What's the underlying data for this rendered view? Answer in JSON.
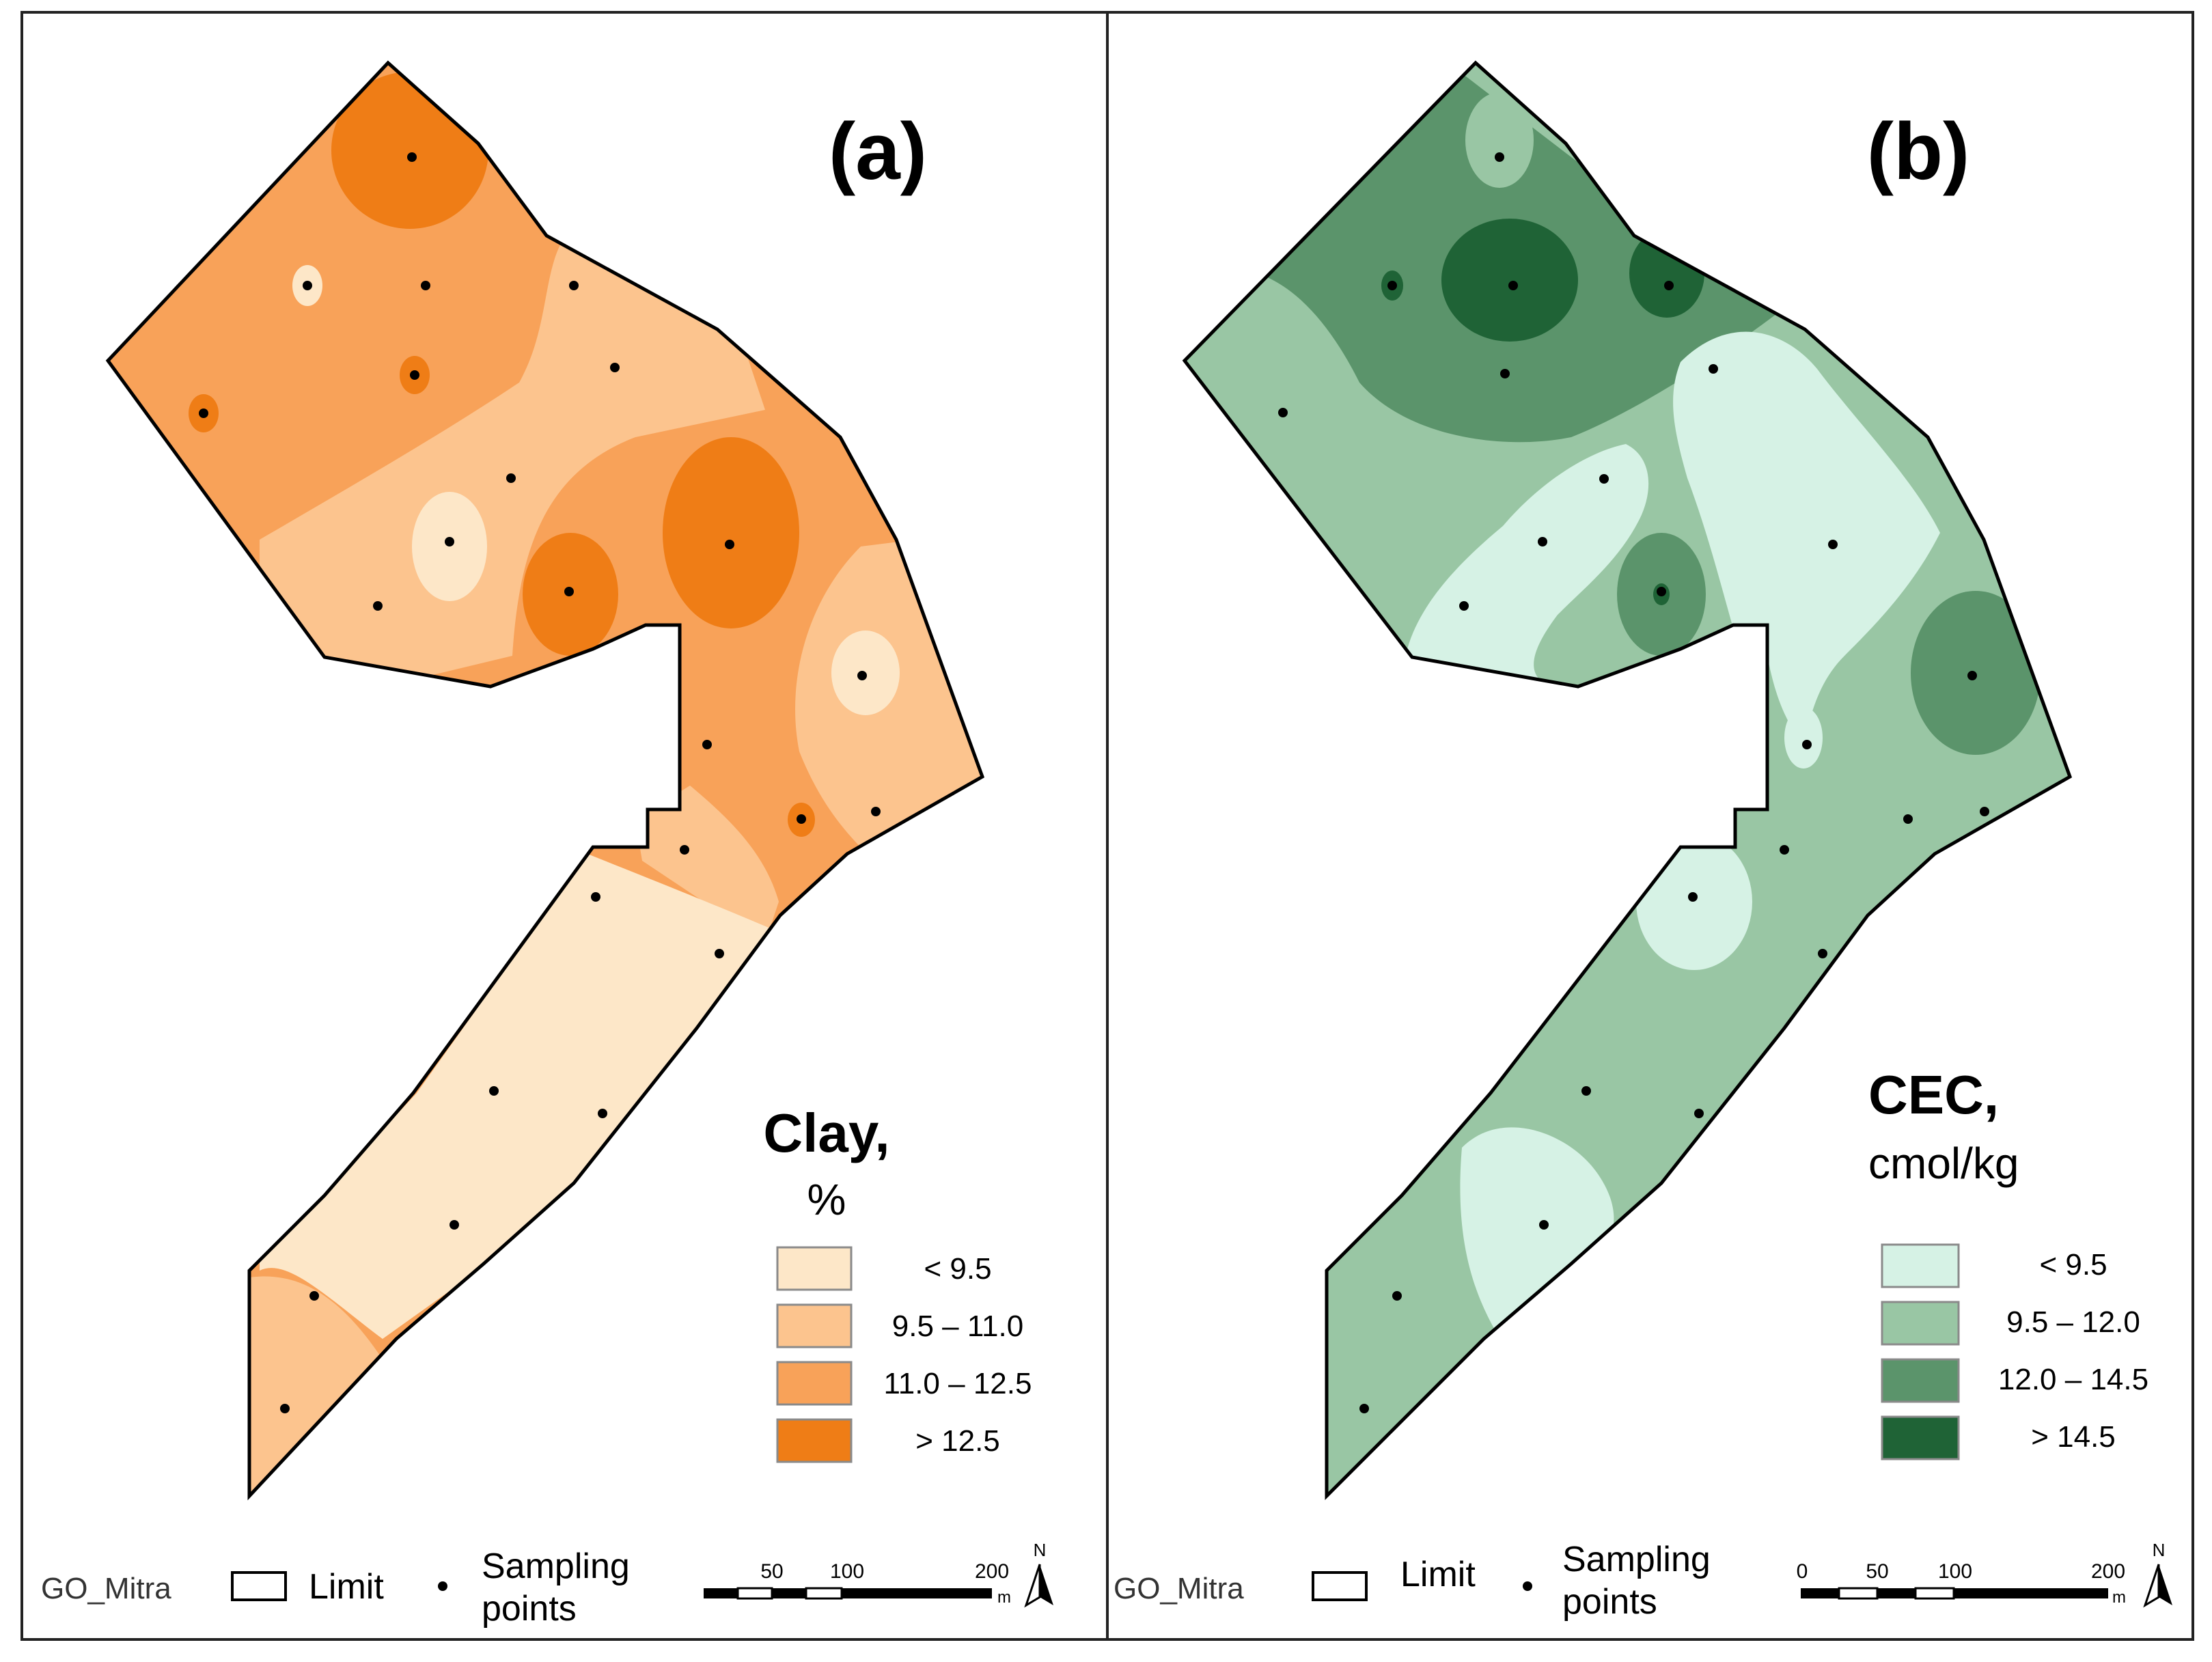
{
  "panels": [
    {
      "id": "a",
      "panel_label": "(a)",
      "legend_title": "Clay,",
      "legend_unit": "%",
      "legend_items": [
        "< 9.5",
        "9.5 – 11.0",
        "11.0 – 12.5",
        "> 12.5"
      ],
      "colors": [
        "#fde7c8",
        "#fcc48e",
        "#f8a259",
        "#ef7d16"
      ],
      "footer": {
        "site": "GO_Mitra",
        "limit_label": "Limit",
        "sampling_label_1": "Sampling",
        "sampling_label_2": "points",
        "scale_ticks": [
          "50",
          "100",
          "200"
        ],
        "scale_unit": "m",
        "north": "N"
      }
    },
    {
      "id": "b",
      "panel_label": "(b)",
      "legend_title": "CEC,",
      "legend_unit": "cmol/kg",
      "legend_items": [
        "< 9.5",
        "9.5 – 12.0",
        "12.0 – 14.5",
        "> 14.5"
      ],
      "colors": [
        "#d6f2e5",
        "#99c6a4",
        "#5b946b",
        "#1f6336"
      ],
      "footer": {
        "site": "GO_Mitra",
        "limit_label": "Limit",
        "sampling_label_1": "Sampling",
        "sampling_label_2": "points",
        "scale_ticks": [
          "0",
          "50",
          "100",
          "200"
        ],
        "scale_unit": "m",
        "north": "N"
      }
    }
  ]
}
